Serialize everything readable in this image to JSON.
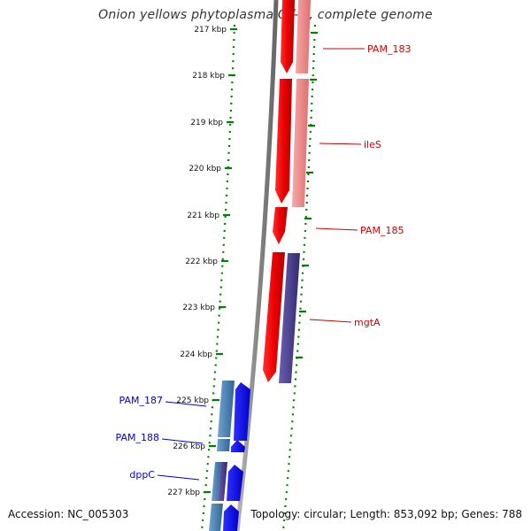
{
  "header": {
    "title": "Onion yellows phytoplasma OY-M, complete genome"
  },
  "footer": {
    "accession": "Accession: NC_005303",
    "summary": "Topology: circular; Length: 853,092 bp; Genes: 788"
  },
  "ruler": {
    "ticks": [
      "217 kbp",
      "218 kbp",
      "219 kbp",
      "220 kbp",
      "221 kbp",
      "222 kbp",
      "223 kbp",
      "224 kbp",
      "225 kbp",
      "226 kbp",
      "227 kbp"
    ]
  },
  "features": [
    {
      "label": "PAM_183",
      "strand": "reverse",
      "color": "#cc0000"
    },
    {
      "label": "ileS",
      "strand": "reverse",
      "color": "#cc0000"
    },
    {
      "label": "PAM_185",
      "strand": "reverse",
      "color": "#cc0000"
    },
    {
      "label": "mgtA",
      "strand": "reverse",
      "color": "#cc0000"
    },
    {
      "label": "PAM_187",
      "strand": "forward",
      "color": "#0000cc"
    },
    {
      "label": "PAM_188",
      "strand": "forward",
      "color": "#0000cc"
    },
    {
      "label": "dppC",
      "strand": "forward",
      "color": "#0000cc"
    }
  ],
  "colors": {
    "reverse_cds": "#ff0000",
    "reverse_cog_light": "#f08080",
    "reverse_cog_purple": "#483d8b",
    "forward_cds": "#0000ff",
    "forward_cog": "#4682b4",
    "backbone": "#808080",
    "tick_dots": "#008000"
  }
}
